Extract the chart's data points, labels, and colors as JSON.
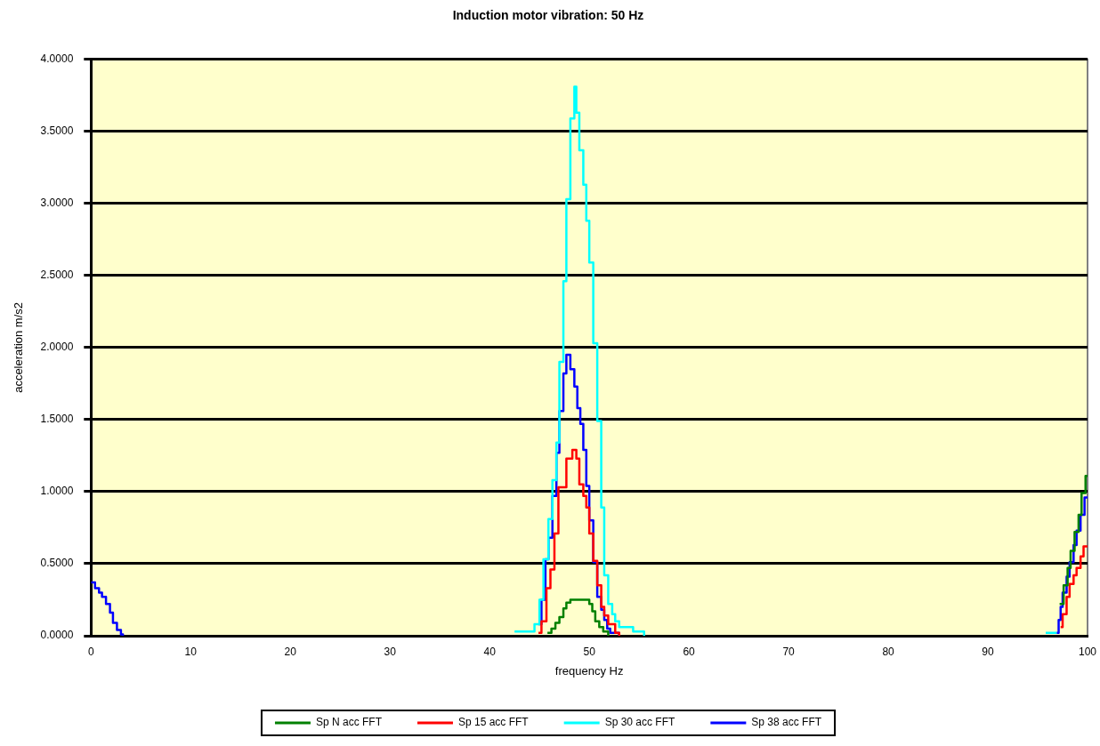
{
  "chart_data": {
    "type": "step",
    "title": "Induction motor vibration: 50 Hz",
    "xlabel": "frequency Hz",
    "ylabel": "acceleration m/s2",
    "xlim": [
      0,
      100
    ],
    "xticks": [
      0,
      10,
      20,
      30,
      40,
      50,
      60,
      70,
      80,
      90,
      100
    ],
    "ylim": [
      0,
      4
    ],
    "yticks": [
      {
        "value": 0,
        "label": "0.0000"
      },
      {
        "value": 0.5,
        "label": "0.5000"
      },
      {
        "value": 1,
        "label": "1.0000"
      },
      {
        "value": 1.5,
        "label": "1.5000"
      },
      {
        "value": 2,
        "label": "2.0000"
      },
      {
        "value": 2.5,
        "label": "2.5000"
      },
      {
        "value": 3,
        "label": "3.0000"
      },
      {
        "value": 3.5,
        "label": "3.5000"
      },
      {
        "value": 4,
        "label": "4.0000"
      }
    ],
    "grid": "y",
    "legend": "bottom",
    "marker": "none",
    "line_style": "solid",
    "series": [
      {
        "name": "Sp N acc FFT",
        "color": "#008000",
        "x": [
          45.8,
          46.2,
          46.6,
          47.0,
          47.4,
          47.7,
          48.1,
          50.0,
          50.3,
          50.6,
          51.0,
          51.4,
          51.9,
          null,
          97.2,
          97.6,
          98.0,
          98.3,
          98.7,
          99.1,
          99.4,
          99.8,
          100
        ],
        "values": [
          0.02,
          0.05,
          0.09,
          0.13,
          0.19,
          0.23,
          0.25,
          0.22,
          0.17,
          0.1,
          0.06,
          0.03,
          0,
          null,
          0.22,
          0.35,
          0.47,
          0.59,
          0.72,
          0.84,
          0.99,
          1.11,
          1.11
        ]
      },
      {
        "name": "Sp 15 acc FFT",
        "color": "#ff0000",
        "x": [
          44.9,
          45.2,
          45.7,
          46.1,
          46.5,
          46.9,
          47.7,
          48.3,
          48.7,
          49.0,
          49.4,
          49.7,
          50.0,
          50.4,
          50.8,
          51.2,
          51.5,
          51.9,
          52.6,
          53.0,
          null,
          97.3,
          97.5,
          97.9,
          98.2,
          98.6,
          98.9,
          99.3,
          99.6,
          100
        ],
        "values": [
          0.02,
          0.1,
          0.33,
          0.46,
          0.71,
          1.03,
          1.23,
          1.29,
          1.23,
          1.05,
          0.97,
          0.89,
          0.71,
          0.52,
          0.35,
          0.2,
          0.14,
          0.08,
          0.02,
          0,
          null,
          0.06,
          0.15,
          0.27,
          0.36,
          0.42,
          0.47,
          0.55,
          0.62,
          0.62
        ]
      },
      {
        "name": "Sp 30 acc FFT",
        "color": "#00ffff",
        "x": [
          42.5,
          44.5,
          45.0,
          45.4,
          45.9,
          46.3,
          46.7,
          47.0,
          47.4,
          47.7,
          48.1,
          48.5,
          48.7,
          49.0,
          49.4,
          49.7,
          50.0,
          50.4,
          50.8,
          51.2,
          51.5,
          51.9,
          52.3,
          52.6,
          53.0,
          54.4,
          55.5,
          null,
          95.8,
          96.9
        ],
        "values": [
          0.03,
          0.08,
          0.25,
          0.53,
          0.81,
          1.08,
          1.34,
          1.9,
          2.46,
          3.03,
          3.59,
          3.81,
          3.63,
          3.37,
          3.13,
          2.88,
          2.59,
          2.03,
          1.49,
          0.89,
          0.42,
          0.22,
          0.15,
          0.1,
          0.06,
          0.03,
          0,
          null,
          0.02,
          0.02
        ]
      },
      {
        "name": "Sp 38 acc FFT",
        "color": "#0000ff",
        "x": [
          0,
          0.4,
          0.8,
          1.1,
          1.5,
          1.9,
          2.2,
          2.6,
          3.0,
          3.2,
          null,
          44.9,
          45.2,
          45.6,
          45.9,
          46.3,
          46.7,
          47.0,
          47.4,
          47.7,
          48.1,
          48.5,
          48.8,
          49.1,
          49.4,
          49.7,
          50.0,
          50.4,
          50.8,
          51.2,
          51.5,
          51.8,
          52.1,
          52.5,
          53.0,
          null,
          96.9,
          97.1,
          97.3,
          97.5,
          97.9,
          98.2,
          98.6,
          98.9,
          99.3,
          99.7,
          100
        ],
        "values": [
          0.37,
          0.33,
          0.3,
          0.27,
          0.22,
          0.16,
          0.09,
          0.04,
          0.01,
          0,
          null,
          0.08,
          0.25,
          0.53,
          0.68,
          0.97,
          1.27,
          1.56,
          1.82,
          1.95,
          1.85,
          1.73,
          1.58,
          1.47,
          1.29,
          1.04,
          0.8,
          0.51,
          0.27,
          0.18,
          0.11,
          0.05,
          0.02,
          0.02,
          0,
          null,
          0.02,
          0.11,
          0.2,
          0.3,
          0.41,
          0.51,
          0.63,
          0.73,
          0.84,
          0.96,
          0.96
        ]
      }
    ]
  }
}
